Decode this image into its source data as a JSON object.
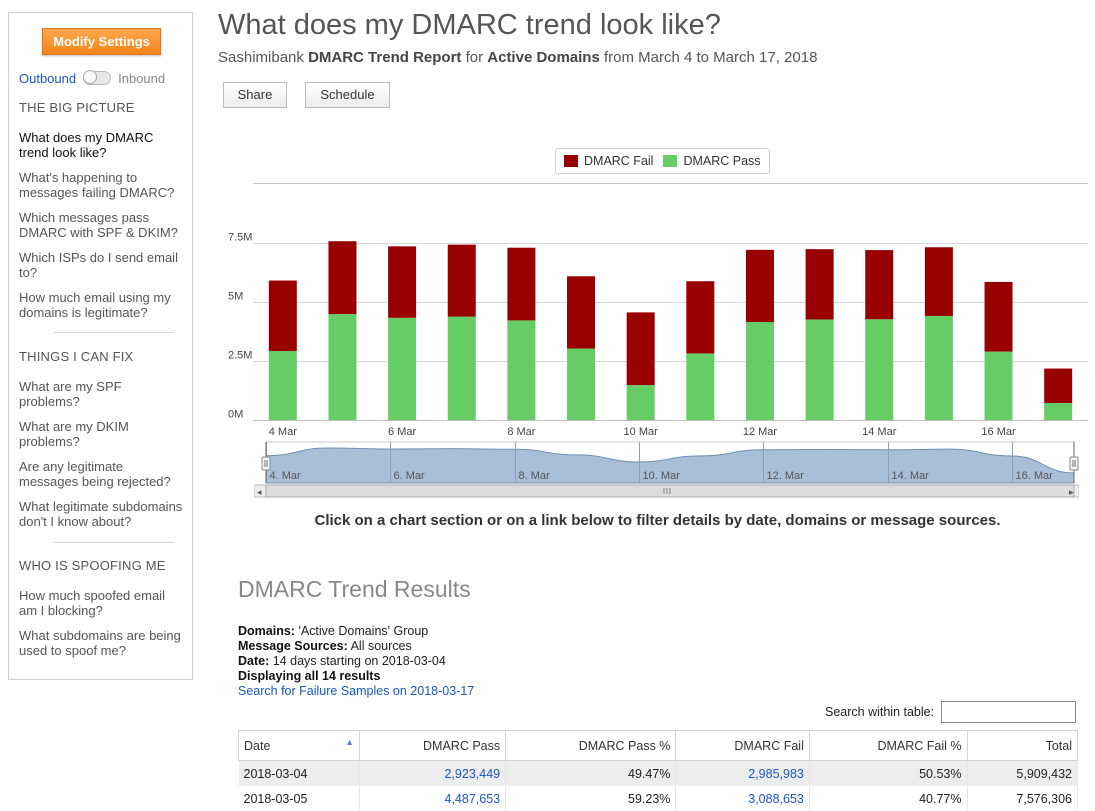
{
  "sidebar": {
    "modify_label": "Modify Settings",
    "toggle": {
      "left": "Outbound",
      "right": "Inbound"
    },
    "sections": [
      {
        "title": "THE BIG PICTURE",
        "items": [
          "What does my DMARC trend look like?",
          "What's happening to messages failing DMARC?",
          "Which messages pass DMARC with SPF & DKIM?",
          "Which ISPs do I send email to?",
          "How much email using my domains is legitimate?"
        ]
      },
      {
        "title": "THINGS I CAN FIX",
        "items": [
          "What are my SPF problems?",
          "What are my DKIM problems?",
          "Are any legitimate messages being rejected?",
          "What legitimate subdomains don't I know about?"
        ]
      },
      {
        "title": "WHO IS SPOOFING ME",
        "items": [
          "How much spoofed email am I blocking?",
          "What subdomains are being used to spoof me?"
        ]
      }
    ]
  },
  "header": {
    "title": "What does my DMARC trend look like?",
    "subtitle": {
      "org": "Sashimibank",
      "report": "DMARC Trend Report",
      "for_text": "for",
      "domains": "Active Domains",
      "range": "from March 4 to March 17, 2018"
    },
    "share_label": "Share",
    "schedule_label": "Schedule"
  },
  "colors": {
    "fail": "#990000",
    "pass": "#66cc66",
    "grid": "#d8d8d8",
    "navigator_fill": "#a9bfd8"
  },
  "chart_data": {
    "type": "bar",
    "stacked": true,
    "categories": [
      "2018-03-04",
      "2018-03-05",
      "2018-03-06",
      "2018-03-07",
      "2018-03-08",
      "2018-03-09",
      "2018-03-10",
      "2018-03-11",
      "2018-03-12",
      "2018-03-13",
      "2018-03-14",
      "2018-03-15",
      "2018-03-16",
      "2018-03-17"
    ],
    "x_tick_labels": [
      "4 Mar",
      "6 Mar",
      "8 Mar",
      "10 Mar",
      "12 Mar",
      "14 Mar",
      "16 Mar"
    ],
    "x_tick_indices": [
      0,
      2,
      4,
      6,
      8,
      10,
      12
    ],
    "navigator_tick_labels": [
      "4. Mar",
      "6. Mar",
      "8. Mar",
      "10. Mar",
      "12. Mar",
      "14. Mar",
      "16. Mar"
    ],
    "y_tick_labels": [
      "0M",
      "2.5M",
      "5M",
      "7.5M"
    ],
    "ylim": [
      0,
      7500000
    ],
    "series": [
      {
        "name": "DMARC Pass",
        "color": "#66cc66",
        "values": [
          2923449,
          4487653,
          4330000,
          4380000,
          4220000,
          3030000,
          1480000,
          2820000,
          4150000,
          4260000,
          4270000,
          4410000,
          2900000,
          720000
        ]
      },
      {
        "name": "DMARC Fail",
        "color": "#990000",
        "values": [
          2985983,
          3088653,
          3030000,
          3050000,
          3080000,
          3060000,
          3080000,
          3060000,
          3060000,
          2980000,
          2930000,
          2910000,
          2950000,
          1460000
        ]
      }
    ],
    "legend": [
      "DMARC Fail",
      "DMARC Pass"
    ],
    "legend_position": "top-right"
  },
  "hint": "Click on a chart section or on a link below to filter details by date, domains or message sources.",
  "results": {
    "title": "DMARC Trend Results",
    "domains_label": "Domains:",
    "domains_value": "'Active Domains' Group",
    "sources_label": "Message Sources:",
    "sources_value": "All sources",
    "date_label": "Date:",
    "date_value": "14 days starting on 2018-03-04",
    "displaying": "Displaying all 14 results",
    "failure_link": "Search for Failure Samples on 2018-03-17",
    "search_label": "Search within table:",
    "search_value": "",
    "columns": [
      "Date",
      "DMARC Pass",
      "DMARC Pass %",
      "DMARC Fail",
      "DMARC Fail %",
      "Total"
    ],
    "rows": [
      {
        "date": "2018-03-04",
        "pass": "2,923,449",
        "pass_pct": "49.47%",
        "fail": "2,985,983",
        "fail_pct": "50.53%",
        "total": "5,909,432"
      },
      {
        "date": "2018-03-05",
        "pass": "4,487,653",
        "pass_pct": "59.23%",
        "fail": "3,088,653",
        "fail_pct": "40.77%",
        "total": "7,576,306"
      }
    ]
  }
}
